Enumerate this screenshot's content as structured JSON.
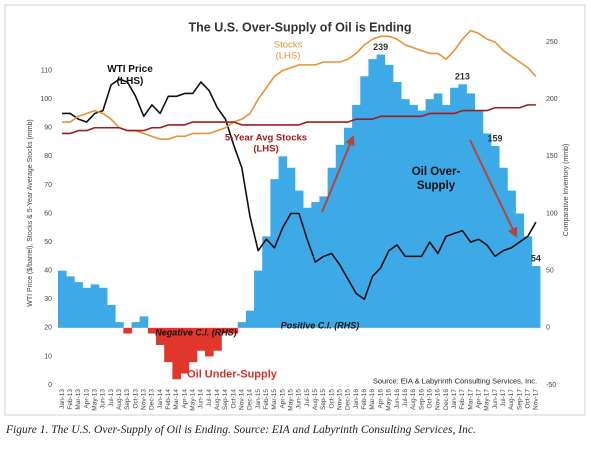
{
  "chart_data": {
    "type": "combo",
    "title": "The U.S. Over-Supply of Oil is Ending",
    "y_label": "WTI Price ($/barrel), Stocks & 5-Year Average Stocks (mmb)",
    "y2_label": "Comparative Inventory (mmb)",
    "categories": [
      "Jan-13",
      "Feb-13",
      "Mar-13",
      "Apr-13",
      "May-13",
      "Jun-13",
      "Jul-13",
      "Aug-13",
      "Sep-13",
      "Oct-13",
      "Nov-13",
      "Dec-13",
      "Jan-14",
      "Feb-14",
      "Mar-14",
      "Apr-14",
      "May-14",
      "Jun-14",
      "Jul-14",
      "Aug-14",
      "Sep-14",
      "Oct-14",
      "Nov-14",
      "Dec-14",
      "Jan-15",
      "Feb-15",
      "Mar-15",
      "Apr-15",
      "May-15",
      "Jun-15",
      "Jul-15",
      "Aug-15",
      "Sep-15",
      "Oct-15",
      "Nov-15",
      "Dec-15",
      "Jan-16",
      "Feb-16",
      "Mar-16",
      "Apr-16",
      "May-16",
      "Jun-16",
      "Jul-16",
      "Aug-16",
      "Sep-16",
      "Oct-16",
      "Nov-16",
      "Dec-16",
      "Jan-17",
      "Feb-17",
      "Mar-17",
      "Apr-17",
      "May-17",
      "Jun-17",
      "Jul-17",
      "Aug-17",
      "Sep-17",
      "Oct-17",
      "Nov-17"
    ],
    "ylim": [
      0,
      120
    ],
    "yticks": [
      0,
      10,
      20,
      30,
      40,
      50,
      60,
      70,
      80,
      90,
      100,
      110
    ],
    "y2lim": [
      -50,
      250
    ],
    "y2ticks": [
      -50,
      0,
      50,
      100,
      150,
      200,
      250
    ],
    "series": [
      {
        "name": "WTI Price (LHS)",
        "type": "line",
        "color": "#111111",
        "values": [
          95,
          95,
          93,
          92,
          95,
          96,
          105,
          107,
          106,
          101,
          94,
          98,
          95,
          101,
          101,
          102,
          102,
          106,
          103,
          97,
          93,
          84,
          76,
          59,
          47,
          51,
          48,
          55,
          60,
          60,
          51,
          43,
          45,
          46,
          42,
          37,
          32,
          30,
          38,
          41,
          47,
          49,
          45,
          45,
          45,
          50,
          46,
          52,
          53,
          54,
          50,
          51,
          49,
          45,
          47,
          48,
          50,
          52,
          57
        ]
      },
      {
        "name": "Stocks (LHS)",
        "type": "line",
        "color": "#e8923a",
        "values": [
          92,
          92,
          94,
          95,
          96,
          95,
          93,
          90,
          89,
          89,
          88,
          87,
          86,
          86,
          87,
          87,
          88,
          88,
          88,
          89,
          90,
          92,
          93,
          95,
          100,
          104,
          108,
          110,
          111,
          112,
          112,
          112,
          113,
          113,
          113,
          114,
          116,
          119,
          121,
          122,
          122,
          121,
          119,
          118,
          117,
          116,
          116,
          114,
          117,
          121,
          124,
          123,
          121,
          120,
          117,
          115,
          113,
          111,
          108
        ]
      },
      {
        "name": "5-Year Avg Stocks (LHS)",
        "type": "line",
        "color": "#a01c1c",
        "values": [
          88,
          88,
          89,
          89,
          90,
          90,
          90,
          90,
          89,
          89,
          89,
          90,
          90,
          91,
          91,
          91,
          92,
          92,
          92,
          92,
          92,
          92,
          91,
          91,
          91,
          91,
          91,
          91,
          91,
          91,
          92,
          92,
          92,
          92,
          92,
          92,
          93,
          93,
          93,
          94,
          94,
          94,
          94,
          94,
          94,
          95,
          95,
          95,
          95,
          96,
          96,
          96,
          96,
          97,
          97,
          97,
          97,
          98,
          98
        ]
      },
      {
        "name": "Positive C.I. (RHS)",
        "negative_name": "Negative C.I. (RHS)",
        "type": "area",
        "axis": "y2",
        "color": "#3da9e6",
        "negative_color": "#e0362c",
        "values": [
          50,
          45,
          40,
          35,
          38,
          35,
          20,
          5,
          -5,
          5,
          10,
          -5,
          -15,
          -30,
          -45,
          -40,
          -30,
          -20,
          -25,
          -20,
          -5,
          -5,
          5,
          15,
          50,
          80,
          130,
          150,
          140,
          120,
          105,
          110,
          115,
          140,
          160,
          175,
          195,
          220,
          235,
          239,
          230,
          215,
          200,
          195,
          190,
          200,
          205,
          195,
          210,
          213,
          205,
          190,
          170,
          159,
          140,
          120,
          100,
          80,
          54
        ],
        "value_labels": [
          null,
          null,
          null,
          null,
          null,
          null,
          null,
          null,
          null,
          null,
          null,
          null,
          null,
          null,
          null,
          null,
          null,
          null,
          null,
          null,
          null,
          null,
          null,
          null,
          null,
          null,
          null,
          null,
          null,
          null,
          null,
          null,
          null,
          null,
          null,
          null,
          null,
          null,
          null,
          "239",
          null,
          null,
          null,
          null,
          null,
          null,
          null,
          null,
          null,
          "213",
          null,
          null,
          null,
          "159",
          null,
          null,
          null,
          null,
          "54"
        ]
      }
    ],
    "annotations": [
      "Oil Over-Supply",
      "Oil Under-Supply",
      "Source:  EIA & Labyrinth Consulting Services, Inc."
    ]
  },
  "caption": "Figure 1. The U.S. Over-Supply of Oil is Ending. Source: EIA and Labyrinth Consulting Services, Inc."
}
